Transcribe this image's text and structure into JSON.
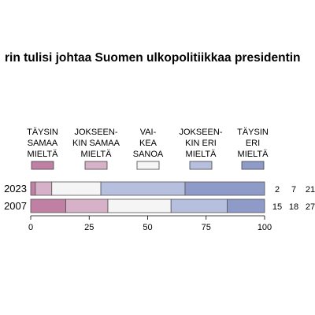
{
  "chart_data": {
    "type": "bar",
    "orientation": "horizontal",
    "stacked": true,
    "title": "rin tulisi johtaa Suomen ulkopolitiikkaa presidentin",
    "categories": [
      "2023",
      "2007"
    ],
    "series": [
      {
        "name": "TÄYSIN SAMAA MIELTÄ",
        "legend_lines": [
          "TÄYSIN",
          "SAMAA",
          "MIELTÄ"
        ],
        "color": "#c080a4",
        "values": [
          2,
          15
        ]
      },
      {
        "name": "JOKSEEN-KIN SAMAA MIELTÄ",
        "legend_lines": [
          "JOKSEEN-",
          "KIN SAMAA",
          "MIELTÄ"
        ],
        "color": "#d6b1c8",
        "values": [
          7,
          18
        ]
      },
      {
        "name": "VAI-KEA SANOA",
        "legend_lines": [
          "VAI-",
          "KEA",
          "SANOA"
        ],
        "color": "#f5f5f5",
        "values": [
          21,
          27
        ]
      },
      {
        "name": "JOKSEEN-KIN ERI MIELTÄ",
        "legend_lines": [
          "JOKSEEN-",
          "KIN ERI",
          "MIELTÄ"
        ],
        "color": "#b6bfde",
        "values": [
          36,
          24
        ]
      },
      {
        "name": "TÄYSIN ERI MIELTÄ",
        "legend_lines": [
          "TÄYSIN",
          "ERI",
          "MIELTÄ"
        ],
        "color": "#8e9ac8",
        "values": [
          34,
          16
        ]
      }
    ],
    "value_labels": [
      [
        "2",
        "7",
        "21"
      ],
      [
        "15",
        "18",
        "27"
      ]
    ],
    "xticks": [
      "0",
      "25",
      "50",
      "75",
      "100"
    ],
    "xlim": [
      0,
      100
    ],
    "grid": false,
    "legend_position": "top"
  }
}
